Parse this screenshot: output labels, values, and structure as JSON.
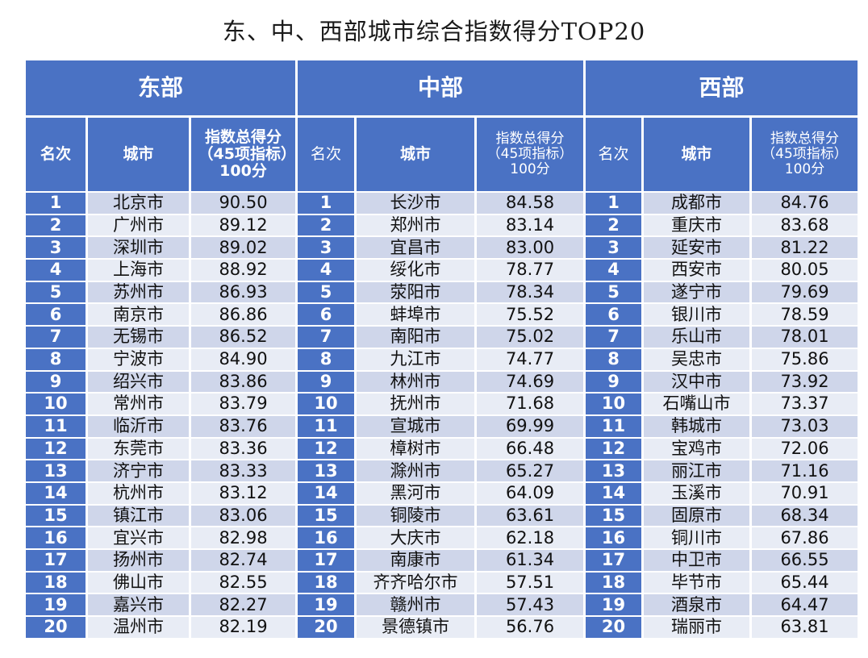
{
  "title": "东、中、西部城市综合指数得分TOP20",
  "regions": [
    "东部",
    "中部",
    "西部"
  ],
  "headers": {
    "east": {
      "rank": "名次",
      "city": "城市",
      "score": "指数总得分（45项指标）100分"
    },
    "central": {
      "rank": "名次",
      "city": "城市",
      "score": "指数总得分（45项指标）100分"
    },
    "west": {
      "rank": "名次",
      "city": "城市",
      "score": "指数总得分（45项指标）100分"
    }
  },
  "rows": [
    {
      "rank": "1",
      "east_city": "北京市",
      "east_score": "90.50",
      "central_city": "长沙市",
      "central_score": "84.58",
      "west_city": "成都市",
      "west_score": "84.76"
    },
    {
      "rank": "2",
      "east_city": "广州市",
      "east_score": "89.12",
      "central_city": "郑州市",
      "central_score": "83.14",
      "west_city": "重庆市",
      "west_score": "83.68"
    },
    {
      "rank": "3",
      "east_city": "深圳市",
      "east_score": "89.02",
      "central_city": "宜昌市",
      "central_score": "83.00",
      "west_city": "延安市",
      "west_score": "81.22"
    },
    {
      "rank": "4",
      "east_city": "上海市",
      "east_score": "88.92",
      "central_city": "绥化市",
      "central_score": "78.77",
      "west_city": "西安市",
      "west_score": "80.05"
    },
    {
      "rank": "5",
      "east_city": "苏州市",
      "east_score": "86.93",
      "central_city": "荥阳市",
      "central_score": "78.34",
      "west_city": "遂宁市",
      "west_score": "79.69"
    },
    {
      "rank": "6",
      "east_city": "南京市",
      "east_score": "86.86",
      "central_city": "蚌埠市",
      "central_score": "75.52",
      "west_city": "银川市",
      "west_score": "78.59"
    },
    {
      "rank": "7",
      "east_city": "无锡市",
      "east_score": "86.52",
      "central_city": "南阳市",
      "central_score": "75.02",
      "west_city": "乐山市",
      "west_score": "78.01"
    },
    {
      "rank": "8",
      "east_city": "宁波市",
      "east_score": "84.90",
      "central_city": "九江市",
      "central_score": "74.77",
      "west_city": "吴忠市",
      "west_score": "75.86"
    },
    {
      "rank": "9",
      "east_city": "绍兴市",
      "east_score": "83.86",
      "central_city": "林州市",
      "central_score": "74.69",
      "west_city": "汉中市",
      "west_score": "73.92"
    },
    {
      "rank": "10",
      "east_city": "常州市",
      "east_score": "83.79",
      "central_city": "抚州市",
      "central_score": "71.68",
      "west_city": "石嘴山市",
      "west_score": "73.37"
    },
    {
      "rank": "11",
      "east_city": "临沂市",
      "east_score": "83.76",
      "central_city": "宣城市",
      "central_score": "69.99",
      "west_city": "韩城市",
      "west_score": "73.03"
    },
    {
      "rank": "12",
      "east_city": "东莞市",
      "east_score": "83.36",
      "central_city": "樟树市",
      "central_score": "66.48",
      "west_city": "宝鸡市",
      "west_score": "72.06"
    },
    {
      "rank": "13",
      "east_city": "济宁市",
      "east_score": "83.33",
      "central_city": "滁州市",
      "central_score": "65.27",
      "west_city": "丽江市",
      "west_score": "71.16"
    },
    {
      "rank": "14",
      "east_city": "杭州市",
      "east_score": "83.12",
      "central_city": "黑河市",
      "central_score": "64.09",
      "west_city": "玉溪市",
      "west_score": "70.91"
    },
    {
      "rank": "15",
      "east_city": "镇江市",
      "east_score": "83.06",
      "central_city": "铜陵市",
      "central_score": "63.61",
      "west_city": "固原市",
      "west_score": "68.34"
    },
    {
      "rank": "16",
      "east_city": "宜兴市",
      "east_score": "82.98",
      "central_city": "大庆市",
      "central_score": "62.18",
      "west_city": "铜川市",
      "west_score": "67.86"
    },
    {
      "rank": "17",
      "east_city": "扬州市",
      "east_score": "82.74",
      "central_city": "南康市",
      "central_score": "61.34",
      "west_city": "中卫市",
      "west_score": "66.55"
    },
    {
      "rank": "18",
      "east_city": "佛山市",
      "east_score": "82.55",
      "central_city": "齐齐哈尔市",
      "central_score": "57.51",
      "west_city": "毕节市",
      "west_score": "65.44"
    },
    {
      "rank": "19",
      "east_city": "嘉兴市",
      "east_score": "82.27",
      "central_city": "赣州市",
      "central_score": "57.43",
      "west_city": "酒泉市",
      "west_score": "64.47"
    },
    {
      "rank": "20",
      "east_city": "温州市",
      "east_score": "82.19",
      "central_city": "景德镇市",
      "central_score": "56.76",
      "west_city": "瑞丽市",
      "west_score": "63.81"
    }
  ],
  "colors": {
    "header_blue": "#4a72c4",
    "row_dark": "#cfd6ea",
    "row_light": "#e8ecf5"
  }
}
